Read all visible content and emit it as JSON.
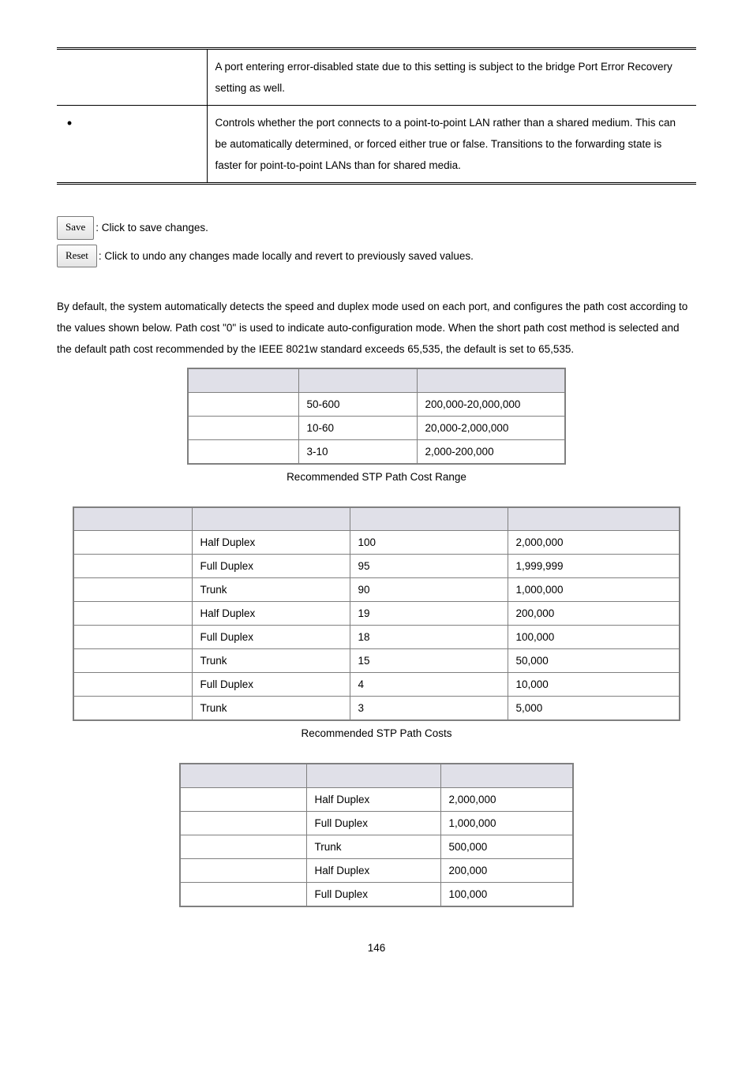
{
  "config_table": {
    "rows": [
      {
        "label": "",
        "text": "A port entering error-disabled state due to this setting is subject to the bridge Port Error Recovery setting as well."
      },
      {
        "label": "•",
        "text": "Controls whether the port connects to a point-to-point LAN rather than a shared medium. This can be automatically determined, or forced either true or false. Transitions to the forwarding state is faster for point-to-point LANs than for shared media."
      }
    ]
  },
  "buttons": {
    "save": {
      "label": "Save",
      "desc": ": Click to save changes."
    },
    "reset": {
      "label": "Reset",
      "desc": ": Click to undo any changes made locally and revert to previously saved values."
    }
  },
  "paragraph": "By default, the system automatically detects the speed and duplex mode used on each port, and configures the path cost according to the values shown below. Path cost \"0\" is used to indicate auto-configuration mode. When the short path cost method is selected and the default path cost recommended by the IEEE 8021w standard exceeds 65,535, the default is set to 65,535.",
  "table1": {
    "caption": "Recommended STP Path Cost Range",
    "header_bg": "#e0e0e8",
    "rows": [
      {
        "c1": "",
        "c2": "50-600",
        "c3": "200,000-20,000,000"
      },
      {
        "c1": "",
        "c2": "10-60",
        "c3": "20,000-2,000,000"
      },
      {
        "c1": "",
        "c2": "3-10",
        "c3": "2,000-200,000"
      }
    ]
  },
  "table2": {
    "caption": "Recommended STP Path Costs",
    "rows": [
      {
        "c1": "",
        "c2": "Half Duplex",
        "c3": "100",
        "c4": "2,000,000",
        "group_top": true
      },
      {
        "c1": "",
        "c2": "Full Duplex",
        "c3": "95",
        "c4": "1,999,999"
      },
      {
        "c1": "",
        "c2": "Trunk",
        "c3": "90",
        "c4": "1,000,000"
      },
      {
        "c1": "",
        "c2": "Half Duplex",
        "c3": "19",
        "c4": "200,000",
        "group_top": true
      },
      {
        "c1": "",
        "c2": "Full Duplex",
        "c3": "18",
        "c4": "100,000"
      },
      {
        "c1": "",
        "c2": "Trunk",
        "c3": "15",
        "c4": "50,000"
      },
      {
        "c1": "",
        "c2": "Full Duplex",
        "c3": "4",
        "c4": "10,000",
        "group_top": true
      },
      {
        "c1": "",
        "c2": "Trunk",
        "c3": "3",
        "c4": "5,000"
      }
    ]
  },
  "table3": {
    "rows": [
      {
        "c1": "",
        "c2": "Half Duplex",
        "c3": "2,000,000",
        "group_top": true
      },
      {
        "c1": "",
        "c2": "Full Duplex",
        "c3": "1,000,000"
      },
      {
        "c1": "",
        "c2": "Trunk",
        "c3": "500,000"
      },
      {
        "c1": "",
        "c2": "Half Duplex",
        "c3": "200,000",
        "group_top": true
      },
      {
        "c1": "",
        "c2": "Full Duplex",
        "c3": "100,000"
      }
    ]
  },
  "page_number": "146"
}
